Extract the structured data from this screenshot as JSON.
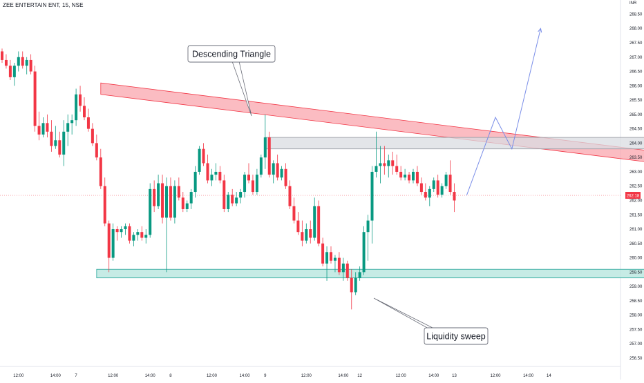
{
  "symbol": {
    "title": "ZEE ENTERTAIN ENT, 15, NSE",
    "currency": "INR"
  },
  "colors": {
    "up": "#089981",
    "down": "#f23645",
    "resistance_fill": "#f9a6ae",
    "resistance_stroke": "#f23645",
    "zone_fill": "#dadce2",
    "zone_stroke": "#9598a1",
    "support_fill": "#b8e6df",
    "support_stroke": "#26a69a",
    "path": "#7a8ee8",
    "price_badge": "#f23645",
    "text": "#131722"
  },
  "chart_data": {
    "type": "candlestick",
    "title": "ZEE ENTERTAIN ENT, 15, NSE",
    "ylim": [
      256.5,
      268.8
    ],
    "y_ticks": [
      "256.50",
      "257.00",
      "257.50",
      "258.00",
      "258.50",
      "259.00",
      "259.50",
      "260.00",
      "260.50",
      "261.00",
      "261.50",
      "262.00",
      "262.50",
      "263.00",
      "263.50",
      "264.00",
      "264.50",
      "265.00",
      "265.50",
      "266.00",
      "266.50",
      "267.00",
      "267.50",
      "268.00",
      "268.50"
    ],
    "x_ticks": [
      {
        "label": "12:00",
        "slot": 4
      },
      {
        "label": "14:00",
        "slot": 13
      },
      {
        "label": "7",
        "slot": 18
      },
      {
        "label": "12:00",
        "slot": 27
      },
      {
        "label": "14:00",
        "slot": 36
      },
      {
        "label": "8",
        "slot": 41
      },
      {
        "label": "12:00",
        "slot": 51
      },
      {
        "label": "14:00",
        "slot": 59
      },
      {
        "label": "9",
        "slot": 64
      },
      {
        "label": "12:00",
        "slot": 74
      },
      {
        "label": "14:00",
        "slot": 83
      },
      {
        "label": "12",
        "slot": 87
      },
      {
        "label": "12:00",
        "slot": 97
      },
      {
        "label": "14:00",
        "slot": 105
      },
      {
        "label": "13",
        "slot": 110
      },
      {
        "label": "12:00",
        "slot": 120
      },
      {
        "label": "14:00",
        "slot": 128
      },
      {
        "label": "14",
        "slot": 133
      }
    ],
    "last_price": "262.18",
    "last_price_value": 262.18,
    "candles": [
      [
        267.2,
        267.3,
        266.8,
        266.9
      ],
      [
        266.9,
        267.1,
        266.6,
        266.7
      ],
      [
        266.7,
        266.9,
        266.2,
        266.3
      ],
      [
        266.3,
        266.8,
        266.0,
        266.7
      ],
      [
        266.7,
        267.2,
        266.5,
        267.0
      ],
      [
        267.0,
        267.2,
        266.6,
        266.7
      ],
      [
        266.7,
        267.0,
        266.4,
        266.9
      ],
      [
        266.9,
        267.1,
        266.4,
        266.5
      ],
      [
        266.5,
        266.7,
        264.4,
        264.6
      ],
      [
        264.6,
        265.1,
        264.1,
        264.3
      ],
      [
        264.3,
        264.9,
        264.2,
        264.7
      ],
      [
        264.7,
        265.0,
        264.2,
        264.4
      ],
      [
        264.4,
        264.8,
        263.7,
        263.9
      ],
      [
        263.9,
        264.6,
        263.8,
        264.1
      ],
      [
        264.1,
        264.4,
        263.5,
        263.6
      ],
      [
        263.6,
        264.8,
        263.2,
        264.4
      ],
      [
        264.4,
        265.0,
        263.9,
        264.7
      ],
      [
        264.7,
        265.0,
        264.3,
        264.8
      ],
      [
        264.8,
        265.9,
        264.6,
        265.7
      ],
      [
        265.7,
        266.0,
        265.1,
        265.3
      ],
      [
        265.3,
        265.6,
        264.8,
        264.9
      ],
      [
        264.9,
        265.2,
        264.4,
        264.5
      ],
      [
        264.5,
        264.7,
        263.9,
        264.0
      ],
      [
        264.0,
        264.3,
        263.4,
        263.5
      ],
      [
        263.5,
        263.8,
        262.4,
        262.5
      ],
      [
        262.5,
        262.8,
        261.1,
        261.2
      ],
      [
        261.2,
        261.3,
        259.5,
        260.0
      ],
      [
        260.0,
        261.2,
        259.9,
        261.0
      ],
      [
        261.0,
        261.1,
        260.6,
        260.9
      ],
      [
        260.9,
        261.1,
        260.7,
        261.0
      ],
      [
        261.0,
        261.2,
        260.8,
        261.1
      ],
      [
        261.1,
        261.2,
        260.5,
        260.6
      ],
      [
        260.6,
        260.9,
        260.4,
        260.8
      ],
      [
        260.8,
        261.0,
        260.6,
        260.9
      ],
      [
        260.9,
        261.1,
        260.6,
        260.7
      ],
      [
        260.7,
        261.0,
        260.5,
        260.8
      ],
      [
        260.8,
        262.6,
        260.7,
        262.4
      ],
      [
        262.4,
        262.7,
        261.6,
        261.8
      ],
      [
        261.8,
        262.9,
        261.7,
        262.6
      ],
      [
        262.6,
        262.9,
        261.2,
        261.4
      ],
      [
        261.4,
        262.8,
        259.5,
        262.5
      ],
      [
        262.5,
        262.8,
        261.3,
        261.4
      ],
      [
        261.4,
        262.7,
        261.2,
        262.5
      ],
      [
        262.5,
        262.8,
        262.0,
        262.1
      ],
      [
        262.1,
        262.3,
        261.6,
        261.7
      ],
      [
        261.7,
        262.0,
        261.6,
        261.9
      ],
      [
        261.9,
        262.4,
        261.7,
        262.3
      ],
      [
        262.3,
        263.2,
        262.1,
        263.0
      ],
      [
        263.0,
        263.9,
        262.9,
        263.8
      ],
      [
        263.8,
        264.0,
        263.2,
        263.3
      ],
      [
        263.3,
        263.6,
        262.6,
        262.7
      ],
      [
        262.7,
        263.1,
        262.5,
        262.9
      ],
      [
        262.9,
        263.3,
        262.7,
        263.0
      ],
      [
        263.0,
        263.2,
        262.6,
        262.7
      ],
      [
        262.7,
        262.9,
        261.6,
        261.7
      ],
      [
        261.7,
        262.3,
        261.6,
        262.2
      ],
      [
        262.2,
        262.4,
        261.8,
        261.9
      ],
      [
        261.9,
        262.3,
        261.8,
        262.1
      ],
      [
        262.1,
        262.4,
        261.9,
        262.3
      ],
      [
        262.3,
        263.0,
        262.1,
        262.9
      ],
      [
        262.9,
        263.3,
        262.6,
        262.7
      ],
      [
        262.7,
        262.9,
        262.2,
        262.3
      ],
      [
        262.3,
        263.1,
        262.2,
        262.9
      ],
      [
        262.9,
        263.6,
        262.8,
        263.5
      ],
      [
        263.5,
        265.0,
        263.1,
        264.2
      ],
      [
        264.2,
        264.4,
        262.8,
        262.9
      ],
      [
        262.9,
        263.4,
        262.6,
        263.3
      ],
      [
        263.3,
        263.6,
        262.7,
        262.8
      ],
      [
        262.8,
        263.2,
        262.7,
        263.1
      ],
      [
        263.1,
        263.3,
        262.4,
        262.5
      ],
      [
        262.5,
        262.7,
        261.7,
        261.8
      ],
      [
        261.8,
        262.1,
        261.2,
        261.3
      ],
      [
        261.3,
        261.6,
        260.8,
        260.9
      ],
      [
        260.9,
        261.3,
        260.4,
        260.6
      ],
      [
        260.6,
        261.2,
        260.5,
        261.0
      ],
      [
        261.0,
        261.3,
        260.5,
        260.7
      ],
      [
        260.7,
        262.1,
        260.6,
        261.8
      ],
      [
        261.8,
        262.0,
        260.4,
        260.5
      ],
      [
        260.5,
        260.7,
        259.7,
        259.8
      ],
      [
        259.8,
        260.4,
        259.2,
        260.2
      ],
      [
        260.2,
        260.4,
        259.8,
        259.9
      ],
      [
        259.9,
        260.1,
        259.5,
        260.0
      ],
      [
        260.0,
        260.2,
        259.4,
        259.5
      ],
      [
        259.5,
        260.0,
        259.2,
        259.8
      ],
      [
        259.8,
        259.9,
        259.2,
        259.3
      ],
      [
        259.3,
        259.6,
        258.2,
        258.8
      ],
      [
        258.8,
        259.5,
        258.7,
        259.3
      ],
      [
        259.3,
        259.7,
        259.2,
        259.5
      ],
      [
        259.5,
        261.1,
        259.4,
        260.9
      ],
      [
        260.9,
        261.5,
        259.9,
        261.3
      ],
      [
        261.3,
        263.2,
        260.5,
        263.0
      ],
      [
        263.0,
        264.4,
        262.8,
        263.2
      ],
      [
        263.2,
        263.9,
        262.6,
        263.3
      ],
      [
        263.3,
        263.9,
        262.9,
        263.2
      ],
      [
        263.2,
        263.6,
        262.8,
        263.4
      ],
      [
        263.4,
        263.7,
        262.9,
        263.2
      ],
      [
        263.2,
        263.6,
        262.9,
        263.0
      ],
      [
        263.0,
        263.2,
        262.7,
        262.8
      ],
      [
        262.8,
        263.1,
        262.7,
        262.9
      ],
      [
        262.9,
        263.0,
        262.6,
        262.7
      ],
      [
        262.7,
        263.1,
        262.6,
        263.0
      ],
      [
        263.0,
        263.2,
        262.5,
        262.6
      ],
      [
        262.6,
        262.8,
        262.2,
        262.3
      ],
      [
        262.3,
        262.6,
        262.0,
        262.1
      ],
      [
        262.1,
        262.5,
        261.8,
        262.4
      ],
      [
        262.4,
        262.8,
        262.3,
        262.7
      ],
      [
        262.7,
        262.9,
        262.1,
        262.2
      ],
      [
        262.2,
        262.6,
        262.1,
        262.5
      ],
      [
        262.5,
        263.0,
        262.4,
        262.9
      ],
      [
        262.9,
        263.4,
        262.2,
        262.3
      ],
      [
        262.3,
        262.6,
        261.6,
        262.0
      ]
    ],
    "annotations": [
      {
        "text": "Descending Triangle"
      },
      {
        "text": "Liquidity sweep"
      }
    ],
    "zones": [
      {
        "name": "resistance-trendline",
        "kind": "sloped",
        "start_slot": 24,
        "end_slot": 165,
        "start_range": [
          265.7,
          266.1
        ],
        "end_range": [
          263.2,
          263.6
        ]
      },
      {
        "name": "supply-zone",
        "kind": "flat",
        "start_slot": 64,
        "end_slot": 169,
        "range": [
          263.8,
          264.2
        ]
      },
      {
        "name": "demand-zone",
        "kind": "flat",
        "start_slot": 23,
        "end_slot": 169,
        "range": [
          259.3,
          259.6
        ]
      }
    ],
    "projection": [
      [
        113,
        262.18
      ],
      [
        120,
        264.9
      ],
      [
        124,
        263.8
      ],
      [
        131,
        268.0
      ]
    ]
  }
}
